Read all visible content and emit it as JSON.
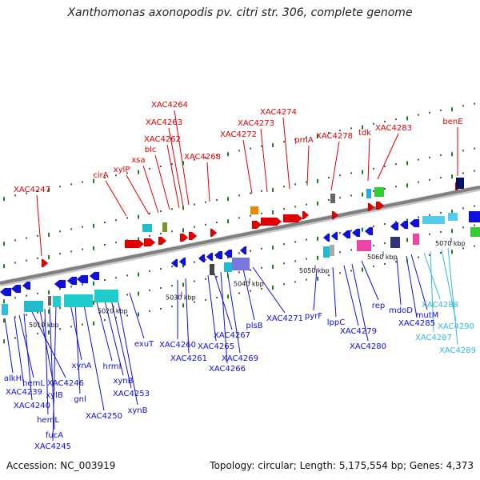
{
  "title": "Xanthomonas axonopodis pv. citri str. 306, complete genome",
  "footer": {
    "accession_label": "Accession:",
    "accession": "NC_003919",
    "topology_label": "Topology:",
    "topology": "circular",
    "length_label": "Length:",
    "length": "5,175,554 bp",
    "genes_label": "Genes:",
    "genes": "4,373"
  },
  "colors": {
    "forward": "#e00000",
    "reverse": "#1010dd",
    "reverse_light": "#33bbdd",
    "backbone": "#808080"
  },
  "ticks": [
    "5010 kbp",
    "5020 kbp",
    "5030 kbp",
    "5040 kbp",
    "5050 kbp",
    "5060 kbp",
    "5070 kbp"
  ],
  "forward_genes": [
    "XAC4247",
    "cirA",
    "xylP",
    "xsa",
    "blc",
    "XAC4262",
    "XAC4263",
    "XAC4264",
    "XAC4268",
    "XAC4272",
    "XAC4273",
    "XAC4274",
    "prnA",
    "XAC4278",
    "tdk",
    "XAC4283",
    "benE"
  ],
  "reverse_genes": [
    "alkH",
    "XAC4239",
    "hemL",
    "XAC4240",
    "XAC4246",
    "xylB",
    "hemL",
    "fucA",
    "XAC4245",
    "xynA",
    "gnl",
    "XAC4250",
    "hrmI",
    "xynB",
    "XAC4253",
    "xynB",
    "exuT",
    "XAC4260",
    "XAC4261",
    "XAC4265",
    "XAC4267",
    "XAC4266",
    "XAC4269",
    "plsB",
    "XAC4271",
    "pyrF",
    "lppC",
    "XAC4279",
    "XAC4280",
    "rep",
    "mdoD",
    "XAC4285",
    "mutM",
    "XAC4288",
    "XAC4287",
    "XAC4290",
    "XAC4289"
  ]
}
